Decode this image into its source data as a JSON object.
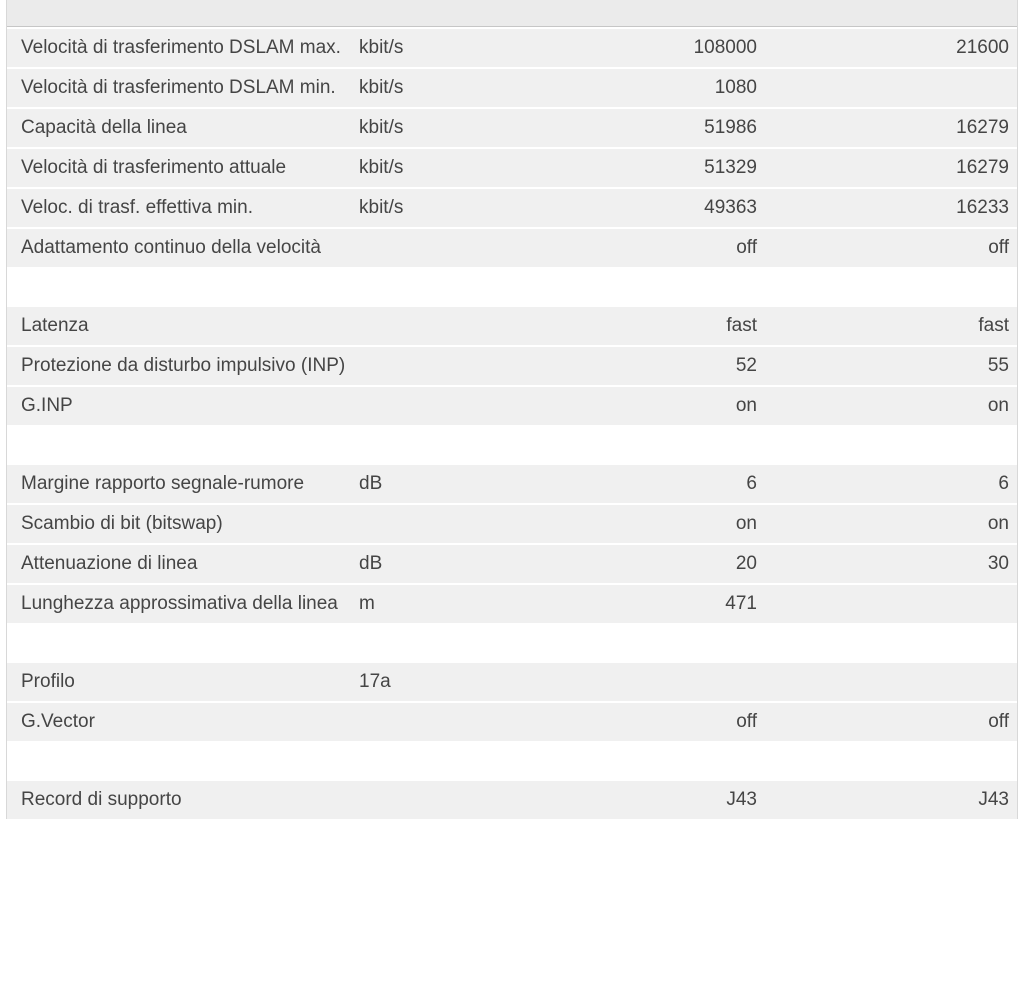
{
  "page": {
    "description": "DSL line information table (Italian router UI)",
    "row_background": "#f0f0f0",
    "header_background": "#ebebeb",
    "text_color": "#454545"
  },
  "table": {
    "rows": [
      {
        "label": "Velocità di trasferimento DSLAM max.",
        "unit": "kbit/s",
        "value1": "108000",
        "value2": "21600"
      },
      {
        "label": "Velocità di trasferimento DSLAM min.",
        "unit": "kbit/s",
        "value1": "1080",
        "value2": ""
      },
      {
        "label": "Capacità della linea",
        "unit": "kbit/s",
        "value1": "51986",
        "value2": "16279"
      },
      {
        "label": "Velocità di trasferimento attuale",
        "unit": "kbit/s",
        "value1": "51329",
        "value2": "16279"
      },
      {
        "label": "Veloc. di trasf. effettiva min.",
        "unit": "kbit/s",
        "value1": "49363",
        "value2": "16233"
      },
      {
        "label": "Adattamento continuo della velocità",
        "unit": "",
        "value1": "off",
        "value2": "off"
      },
      {
        "spacer": true
      },
      {
        "label": "Latenza",
        "unit": "",
        "value1": "fast",
        "value2": "fast"
      },
      {
        "label": "Protezione da disturbo impulsivo (INP)",
        "unit": "",
        "value1": "52",
        "value2": "55"
      },
      {
        "label": "G.INP",
        "unit": "",
        "value1": "on",
        "value2": "on"
      },
      {
        "spacer": true
      },
      {
        "label": "Margine rapporto segnale-rumore",
        "unit": "dB",
        "value1": "6",
        "value2": "6"
      },
      {
        "label": "Scambio di bit (bitswap)",
        "unit": "",
        "value1": "on",
        "value2": "on"
      },
      {
        "label": "Attenuazione di linea",
        "unit": "dB",
        "value1": "20",
        "value2": "30"
      },
      {
        "label": "Lunghezza approssimativa della linea",
        "unit": "m",
        "value1": "471",
        "value2": ""
      },
      {
        "spacer": true
      },
      {
        "label": "Profilo",
        "unit": "17a",
        "value1": "",
        "value2": ""
      },
      {
        "label": "G.Vector",
        "unit": "",
        "value1": "off",
        "value2": "off"
      },
      {
        "spacer": true
      },
      {
        "label": "Record di supporto",
        "unit": "",
        "value1": "J43",
        "value2": "J43"
      }
    ]
  }
}
